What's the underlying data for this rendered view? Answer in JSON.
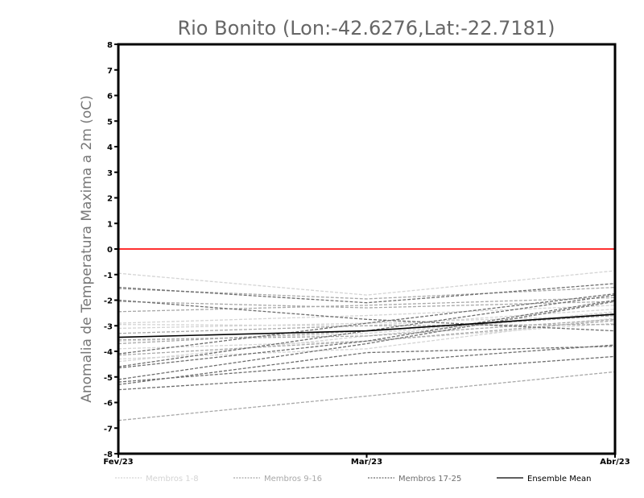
{
  "chart_data": {
    "type": "line",
    "title": "Rio Bonito (Lon:-42.6276,Lat:-22.7181)",
    "ylabel": "Anomalia de Temperatura Maxima a 2m (oC)",
    "xlabel": "",
    "x": [
      "Fev/23",
      "Mar/23",
      "Abr/23"
    ],
    "ylim": [
      -8,
      8
    ],
    "yticks": [
      -8,
      -7,
      -6,
      -5,
      -4,
      -3,
      -2,
      -1,
      0,
      1,
      2,
      3,
      4,
      5,
      6,
      7,
      8
    ],
    "ytick_labels": [
      "-8",
      "-7",
      "-6",
      "-5",
      "-4",
      "-3",
      "-2",
      "-1",
      "0",
      "1",
      "2",
      "3",
      "4",
      "5",
      "6",
      "7",
      "8"
    ],
    "reference_line": {
      "value": 0,
      "color": "#ff3030"
    },
    "groups": [
      {
        "name": "Membros 1-8",
        "color": "#d4d4d4"
      },
      {
        "name": "Membros 9-16",
        "color": "#a8a8a8"
      },
      {
        "name": "Membros 17-25",
        "color": "#6e6e6e"
      },
      {
        "name": "Ensemble Mean",
        "color": "#000000"
      }
    ],
    "series": [
      {
        "group": 0,
        "values": [
          -0.95,
          -1.8,
          -0.85
        ]
      },
      {
        "group": 0,
        "values": [
          -2.9,
          -2.6,
          -2.2
        ]
      },
      {
        "group": 0,
        "values": [
          -2.95,
          -3.0,
          -2.35
        ]
      },
      {
        "group": 0,
        "values": [
          -3.6,
          -3.3,
          -2.5
        ]
      },
      {
        "group": 0,
        "values": [
          -4.3,
          -3.9,
          -2.7
        ]
      },
      {
        "group": 0,
        "values": [
          -3.9,
          -3.6,
          -2.9
        ]
      },
      {
        "group": 0,
        "values": [
          -3.1,
          -2.9,
          -2.6
        ]
      },
      {
        "group": 0,
        "values": [
          -4.4,
          -3.4,
          -2.45
        ]
      },
      {
        "group": 1,
        "values": [
          -1.55,
          -1.95,
          -1.5
        ]
      },
      {
        "group": 1,
        "values": [
          -2.45,
          -2.2,
          -1.9
        ]
      },
      {
        "group": 1,
        "values": [
          -3.3,
          -3.0,
          -2.95
        ]
      },
      {
        "group": 1,
        "values": [
          -3.55,
          -3.4,
          -2.75
        ]
      },
      {
        "group": 1,
        "values": [
          -4.15,
          -3.6,
          -2.8
        ]
      },
      {
        "group": 1,
        "values": [
          -6.7,
          -5.75,
          -4.8
        ]
      },
      {
        "group": 1,
        "values": [
          -3.7,
          -3.2,
          -2.6
        ]
      },
      {
        "group": 1,
        "values": [
          -2.05,
          -2.3,
          -2.05
        ]
      },
      {
        "group": 2,
        "values": [
          -1.5,
          -2.1,
          -1.35
        ]
      },
      {
        "group": 2,
        "values": [
          -2.0,
          -2.75,
          -3.2
        ]
      },
      {
        "group": 2,
        "values": [
          -4.1,
          -2.9,
          -1.75
        ]
      },
      {
        "group": 2,
        "values": [
          -4.6,
          -3.2,
          -1.8
        ]
      },
      {
        "group": 2,
        "values": [
          -4.65,
          -3.6,
          -2.0
        ]
      },
      {
        "group": 2,
        "values": [
          -5.1,
          -3.7,
          -2.05
        ]
      },
      {
        "group": 2,
        "values": [
          -5.2,
          -4.45,
          -3.75
        ]
      },
      {
        "group": 2,
        "values": [
          -5.5,
          -4.9,
          -4.2
        ]
      },
      {
        "group": 2,
        "values": [
          -5.3,
          -4.05,
          -3.8
        ]
      },
      {
        "group": 3,
        "values": [
          -3.45,
          -3.2,
          -2.55
        ]
      }
    ]
  }
}
